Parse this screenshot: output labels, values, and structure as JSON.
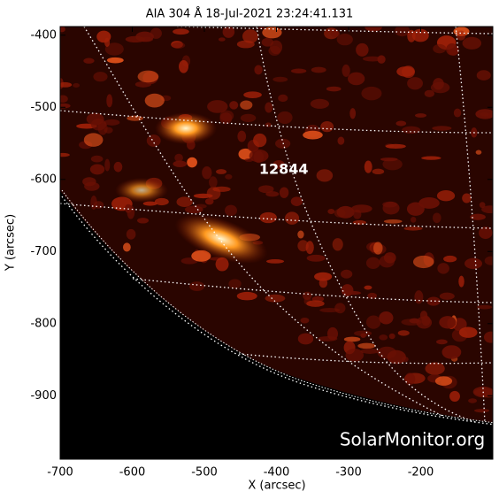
{
  "chart_data": {
    "type": "image",
    "title": "AIA 304 Å 18-Jul-2021 23:24:41.131",
    "xlabel": "X (arcsec)",
    "ylabel": "Y (arcsec)",
    "xlim": [
      -700,
      -100
    ],
    "ylim": [
      -988,
      -388
    ],
    "xticks": [
      -700,
      -600,
      -500,
      -400,
      -300,
      -200
    ],
    "yticks": [
      -400,
      -500,
      -600,
      -700,
      -800,
      -900
    ],
    "annotations": [
      {
        "text": "12844",
        "x": -390,
        "y": -587
      }
    ],
    "watermark": "SolarMonitor.org"
  }
}
